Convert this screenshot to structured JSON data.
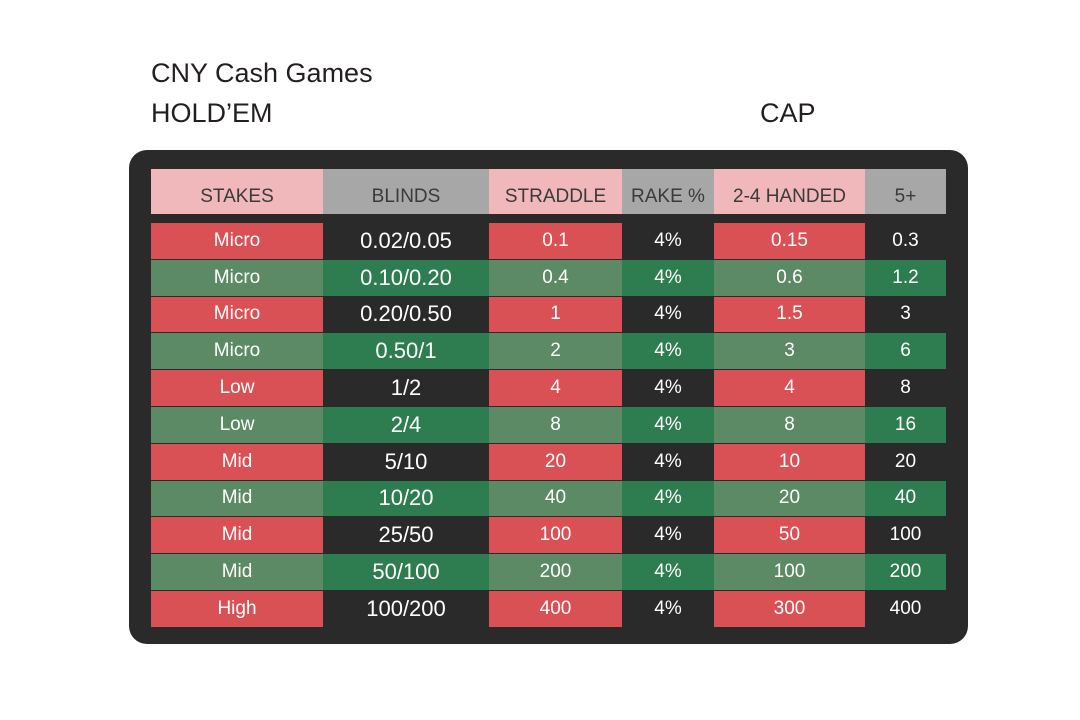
{
  "heading": {
    "line1": "CNY Cash Games",
    "line2": "HOLD’EM",
    "cap": "CAP"
  },
  "colors": {
    "header_pink": "#f0b8ba",
    "header_grey": "#a7a7a8",
    "row_red": "#d95055",
    "row_green": "#5b8a64",
    "row_dark_green": "#2e7d50",
    "panel": "#2b2a2b"
  },
  "table": {
    "columns": [
      "STAKES",
      "BLINDS",
      "STRADDLE",
      "RAKE %",
      "2-4 HANDED",
      "5+"
    ],
    "rows": [
      [
        "Micro",
        "0.02/0.05",
        "0.1",
        "4%",
        "0.15",
        "0.3"
      ],
      [
        "Micro",
        "0.10/0.20",
        "0.4",
        "4%",
        "0.6",
        "1.2"
      ],
      [
        "Micro",
        "0.20/0.50",
        "1",
        "4%",
        "1.5",
        "3"
      ],
      [
        "Micro",
        "0.50/1",
        "2",
        "4%",
        "3",
        "6"
      ],
      [
        "Low",
        "1/2",
        "4",
        "4%",
        "4",
        "8"
      ],
      [
        "Low",
        "2/4",
        "8",
        "4%",
        "8",
        "16"
      ],
      [
        "Mid",
        "5/10",
        "20",
        "4%",
        "10",
        "20"
      ],
      [
        "Mid",
        "10/20",
        "40",
        "4%",
        "20",
        "40"
      ],
      [
        "Mid",
        "25/50",
        "100",
        "4%",
        "50",
        "100"
      ],
      [
        "Mid",
        "50/100",
        "200",
        "4%",
        "100",
        "200"
      ],
      [
        "High",
        "100/200",
        "400",
        "4%",
        "300",
        "400"
      ]
    ]
  }
}
